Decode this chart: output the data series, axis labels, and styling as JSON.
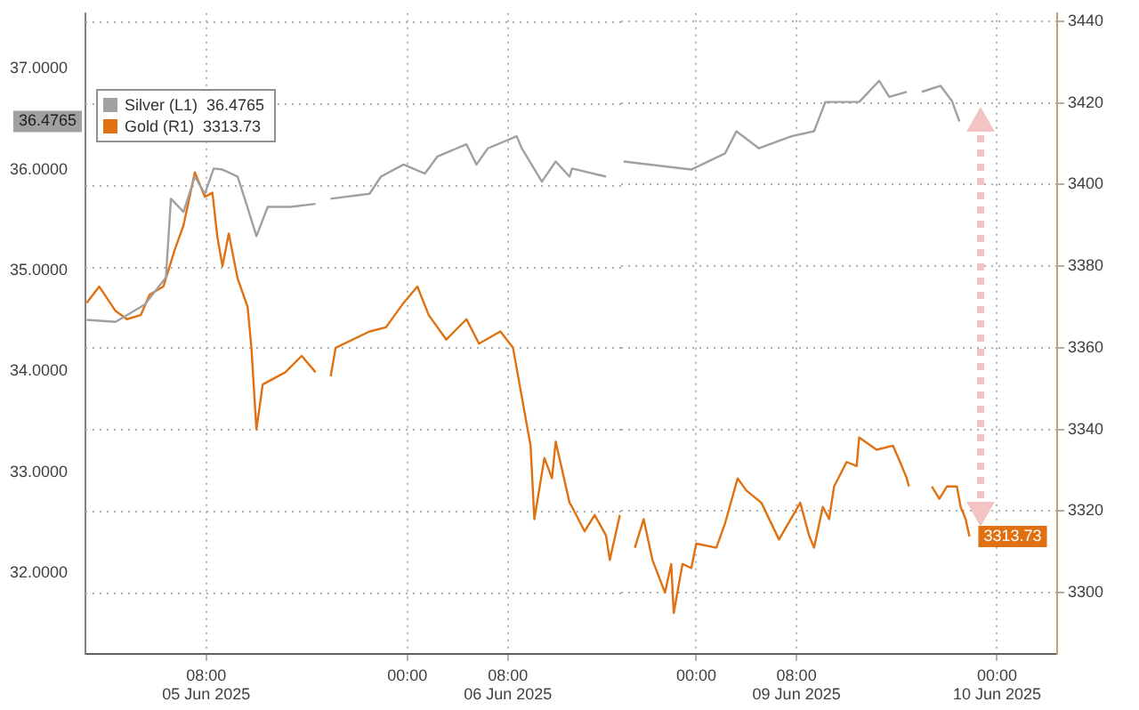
{
  "chart_data": [
    {
      "type": "line",
      "legend": "top left",
      "grid": true,
      "marker": "none",
      "line_style": "solid",
      "tick_labels": [
        "x",
        "y"
      ],
      "xlim": [
        "2025-06-04T22:24",
        "2025-06-06T17:00"
      ],
      "xticks": [
        {
          "value": "2025-06-05T08:00",
          "label": "08:00\n05 Jun 2025"
        },
        {
          "value": "2025-06-06T00:00",
          "label": "00:00"
        },
        {
          "value": "2025-06-06T08:00",
          "label": "08:00\n06 Jun 2025"
        }
      ],
      "ylim": [
        31.2,
        37.55
      ],
      "yticks": [
        {
          "value": 32,
          "label": "32.0000"
        },
        {
          "value": 33,
          "label": "33.0000"
        },
        {
          "value": 34,
          "label": "34.0000"
        },
        {
          "value": 35,
          "label": "35.0000"
        },
        {
          "value": 36,
          "label": "36.0000"
        },
        {
          "value": 37,
          "label": "37.0000"
        }
      ],
      "y2lim": [
        3285,
        3442
      ],
      "series": [
        {
          "name": "Silver (L1)",
          "color": "#a0a0a0",
          "axis": "y",
          "x": [
            "2025-06-04T22:30",
            "2025-06-05T00:48",
            "2025-06-05T03:06",
            "2025-06-05T04:48",
            "2025-06-05T05:12",
            "2025-06-05T06:12",
            "2025-06-05T07:06",
            "2025-06-05T07:54",
            "2025-06-05T08:36",
            "2025-06-05T09:18",
            "2025-06-05T10:30",
            "2025-06-05T11:12",
            "2025-06-05T12:00",
            "2025-06-05T12:54",
            "2025-06-05T14:42",
            "2025-06-05T16:42",
            "2025-06-05T17:18",
            "2025-06-05T17:54",
            "2025-06-05T21:00",
            "2025-06-05T21:54",
            "2025-06-05T23:42",
            "2025-06-06T01:24",
            "2025-06-06T02:24",
            "2025-06-06T04:42",
            "2025-06-06T05:30",
            "2025-06-06T06:24",
            "2025-06-06T08:42",
            "2025-06-06T09:06",
            "2025-06-06T10:42",
            "2025-06-06T11:48",
            "2025-06-06T12:54",
            "2025-06-06T13:06",
            "2025-06-06T15:48"
          ],
          "values": [
            34.51,
            34.49,
            34.66,
            34.93,
            35.71,
            35.58,
            35.93,
            35.76,
            36.01,
            36.0,
            35.93,
            35.66,
            35.34,
            35.63,
            35.63,
            35.66,
            null,
            35.71,
            35.76,
            35.93,
            36.05,
            35.96,
            36.13,
            36.25,
            36.05,
            36.21,
            36.33,
            36.21,
            35.88,
            36.08,
            35.93,
            36.01,
            35.93
          ]
        },
        {
          "name": "Gold (R1)",
          "color": "#e07010",
          "axis": "y2",
          "x": [
            "2025-06-04T22:30",
            "2025-06-04T23:30",
            "2025-06-05T00:48",
            "2025-06-05T01:42",
            "2025-06-05T02:48",
            "2025-06-05T03:30",
            "2025-06-05T04:36",
            "2025-06-05T04:48",
            "2025-06-05T05:30",
            "2025-06-05T06:12",
            "2025-06-05T07:06",
            "2025-06-05T07:54",
            "2025-06-05T08:30",
            "2025-06-05T08:54",
            "2025-06-05T09:18",
            "2025-06-05T09:48",
            "2025-06-05T10:30",
            "2025-06-05T11:18",
            "2025-06-05T11:36",
            "2025-06-05T12:00",
            "2025-06-05T12:30",
            "2025-06-05T14:18",
            "2025-06-05T15:36",
            "2025-06-05T16:42",
            "2025-06-05T17:18",
            "2025-06-05T17:54",
            "2025-06-05T18:18",
            "2025-06-05T21:00",
            "2025-06-05T22:18",
            "2025-06-05T23:42",
            "2025-06-06T00:48",
            "2025-06-06T01:42",
            "2025-06-06T03:06",
            "2025-06-06T04:42",
            "2025-06-06T05:42",
            "2025-06-06T07:24",
            "2025-06-06T08:24",
            "2025-06-06T09:06",
            "2025-06-06T09:48",
            "2025-06-06T10:06",
            "2025-06-06T10:54",
            "2025-06-06T11:30",
            "2025-06-06T11:48",
            "2025-06-06T12:54",
            "2025-06-06T13:06",
            "2025-06-06T14:06",
            "2025-06-06T14:54",
            "2025-06-06T15:48",
            "2025-06-06T16:06",
            "2025-06-06T16:54"
          ],
          "values": [
            3371,
            3375,
            3369,
            3367,
            3368,
            3373,
            3375,
            3377,
            3384,
            3390,
            3403,
            3397,
            3398,
            3387,
            3380,
            3388,
            3377,
            3370,
            3360,
            3340,
            3351,
            3354,
            3358,
            3354,
            null,
            3353,
            3360,
            3364,
            3365,
            3371,
            3375,
            3368,
            3362,
            3367,
            3361,
            3364,
            3360,
            3348,
            3336,
            3318,
            3333,
            3328,
            3337,
            3322,
            3321,
            3315,
            3319,
            3314,
            3308,
            3319
          ]
        }
      ]
    },
    {
      "type": "line",
      "grid": true,
      "marker": "none",
      "line_style": "solid",
      "tick_labels": [
        "x",
        "y2"
      ],
      "xlim": [
        "2025-06-08T18:00",
        "2025-06-10T04:48"
      ],
      "xticks": [
        {
          "value": "2025-06-09T00:00",
          "label": "00:00"
        },
        {
          "value": "2025-06-09T08:00",
          "label": "08:00\n09 Jun 2025"
        },
        {
          "value": "2025-06-10T00:00",
          "label": "00:00\n10 Jun 2025"
        }
      ],
      "ylim": [
        31.2,
        37.55
      ],
      "y2lim": [
        3285,
        3442
      ],
      "y2ticks": [
        3300,
        3320,
        3340,
        3360,
        3380,
        3400,
        3420,
        3440
      ],
      "series": [
        {
          "color": "#a0a0a0",
          "axis": "y",
          "x": [
            "2025-06-08T18:12",
            "2025-06-08T23:36",
            "2025-06-09T02:18",
            "2025-06-09T03:12",
            "2025-06-09T05:00",
            "2025-06-09T07:36",
            "2025-06-09T09:24",
            "2025-06-09T10:18",
            "2025-06-09T13:00",
            "2025-06-09T14:36",
            "2025-06-09T15:24",
            "2025-06-09T16:48",
            "2025-06-09T17:24",
            "2025-06-09T18:00",
            "2025-06-09T19:30",
            "2025-06-09T20:24",
            "2025-06-09T21:00"
          ],
          "values": [
            36.08,
            36.0,
            36.16,
            36.38,
            36.21,
            36.33,
            36.38,
            36.67,
            36.67,
            36.88,
            36.72,
            36.77,
            null,
            36.77,
            36.83,
            36.68,
            36.4765
          ],
          "value_labels": [
            null,
            null,
            null,
            null,
            null,
            null,
            null,
            null,
            null,
            null,
            null,
            null,
            null,
            null,
            null,
            null,
            "36.4765"
          ]
        },
        {
          "color": "#e07010",
          "axis": "y2",
          "x": [
            "2025-06-08T19:06",
            "2025-06-08T19:48",
            "2025-06-08T20:30",
            "2025-06-08T21:30",
            "2025-06-08T22:00",
            "2025-06-08T22:12",
            "2025-06-08T22:54",
            "2025-06-08T23:36",
            "2025-06-09T00:00",
            "2025-06-09T01:36",
            "2025-06-09T02:18",
            "2025-06-09T03:18",
            "2025-06-09T04:00",
            "2025-06-09T05:12",
            "2025-06-09T06:36",
            "2025-06-09T08:18",
            "2025-06-09T09:00",
            "2025-06-09T09:24",
            "2025-06-09T10:06",
            "2025-06-09T10:36",
            "2025-06-09T11:00",
            "2025-06-09T12:00",
            "2025-06-09T12:48",
            "2025-06-09T13:00",
            "2025-06-09T14:24",
            "2025-06-09T15:42",
            "2025-06-09T16:24",
            "2025-06-09T16:48",
            "2025-06-09T16:58",
            "2025-06-09T17:30",
            "2025-06-09T18:48",
            "2025-06-09T19:24",
            "2025-06-09T20:00",
            "2025-06-09T20:48",
            "2025-06-09T21:06",
            "2025-06-09T21:30",
            "2025-06-09T21:48"
          ],
          "values": [
            3311,
            3318,
            3308,
            3300,
            3307,
            3295,
            3307,
            3306,
            3312,
            3311,
            3317,
            3328,
            3325,
            3322,
            3313,
            3322,
            3314,
            3311,
            3321,
            3318,
            3326,
            3332,
            3331,
            3338,
            3335,
            3336,
            3331,
            3328,
            3326,
            null,
            3326,
            3323,
            3326,
            3326,
            3321,
            3318,
            3313.73
          ],
          "value_labels": [
            null,
            null,
            null,
            null,
            null,
            null,
            null,
            null,
            null,
            null,
            null,
            null,
            null,
            null,
            null,
            null,
            null,
            null,
            null,
            null,
            null,
            null,
            null,
            null,
            null,
            null,
            null,
            null,
            null,
            null,
            null,
            null,
            null,
            null,
            null,
            null,
            "3313.73"
          ]
        }
      ]
    }
  ]
}
